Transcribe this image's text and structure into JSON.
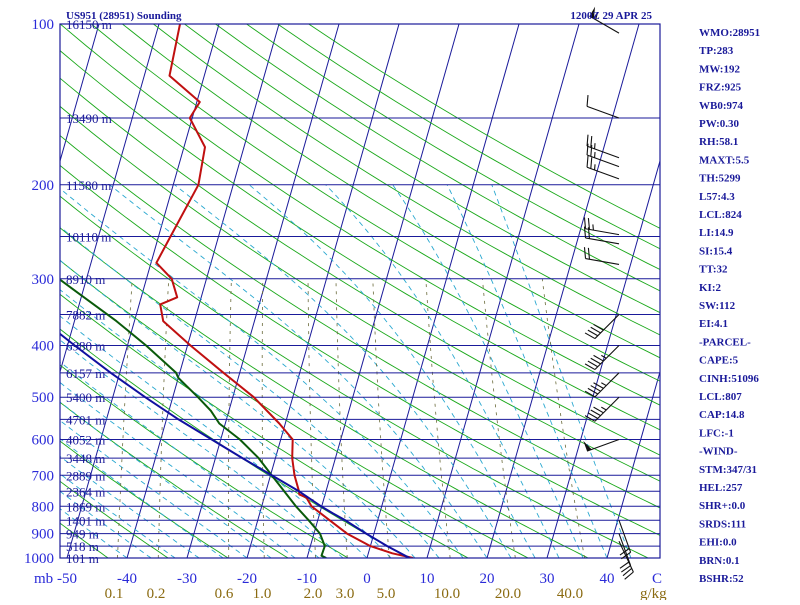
{
  "header": {
    "station": "US951 (28951) Sounding",
    "time": "1200Z 29 APR 25"
  },
  "indices": [
    "WMO:28951",
    "TP:283",
    "MW:192",
    "FRZ:925",
    "WB0:974",
    "PW:0.30",
    "RH:58.1",
    "MAXT:5.5",
    "TH:5299",
    "L57:4.3",
    "LCL:824",
    "LI:14.9",
    "SI:15.4",
    "TT:32",
    "KI:2",
    "SW:112",
    "EI:4.1",
    "-PARCEL-",
    "CAPE:5",
    "CINH:51096",
    "LCL:807",
    "CAP:14.8",
    "LFC:-1",
    "-WIND-",
    "STM:347/31",
    "HEL:257",
    "SHR+:0.0",
    "SRDS:111",
    "EHI:0.0",
    "BRN:0.1",
    "BSHR:52"
  ],
  "axis": {
    "pressure_unit": "mb",
    "temp_unit": "C",
    "mixing_unit": "g/kg"
  },
  "colors": {
    "isobar": "#1a1a9a",
    "isotherm": "#1a1a9a",
    "dry_adiabat": "#1aa81a",
    "moist_adiabat": "#2aa8d0",
    "mixing_ratio": "#6a6a3a",
    "temperature": "#c01010",
    "dewpoint": "#0a5a0a",
    "parcel": "#1010a0"
  },
  "chart_data": {
    "type": "line",
    "diagram": "skew-T log-P",
    "ylim": [
      1000,
      100
    ],
    "xlim": [
      -50,
      50
    ],
    "pressure_ticks": [
      {
        "label": "100",
        "p": 100
      },
      {
        "label": "200",
        "p": 200
      },
      {
        "label": "300",
        "p": 300
      },
      {
        "label": "400",
        "p": 400
      },
      {
        "label": "500",
        "p": 500
      },
      {
        "label": "600",
        "p": 600
      },
      {
        "label": "700",
        "p": 700
      },
      {
        "label": "800",
        "p": 800
      },
      {
        "label": "900",
        "p": 900
      },
      {
        "label": "1000",
        "p": 1000
      }
    ],
    "height_levels": [
      {
        "p": 100,
        "label": "16150 m"
      },
      {
        "p": 150,
        "label": "13490 m"
      },
      {
        "p": 200,
        "label": "11580 m"
      },
      {
        "p": 250,
        "label": "10110 m"
      },
      {
        "p": 300,
        "label": "8910 m"
      },
      {
        "p": 350,
        "label": "7882 m"
      },
      {
        "p": 400,
        "label": "6980 m"
      },
      {
        "p": 450,
        "label": "6157 m"
      },
      {
        "p": 500,
        "label": "5400 m"
      },
      {
        "p": 550,
        "label": "4701 m"
      },
      {
        "p": 600,
        "label": "4052 m"
      },
      {
        "p": 650,
        "label": "3448 m"
      },
      {
        "p": 700,
        "label": "2889 m"
      },
      {
        "p": 750,
        "label": "2364 m"
      },
      {
        "p": 800,
        "label": "1869 m"
      },
      {
        "p": 850,
        "label": "1401 m"
      },
      {
        "p": 900,
        "label": "949 m"
      },
      {
        "p": 950,
        "label": "518 m"
      },
      {
        "p": 1000,
        "label": "101 m"
      }
    ],
    "temp_ticks": [
      {
        "label": "-50",
        "value": -50
      },
      {
        "label": "-40",
        "value": -40
      },
      {
        "label": "-30",
        "value": -30
      },
      {
        "label": "-20",
        "value": -20
      },
      {
        "label": "-10",
        "value": -10
      },
      {
        "label": "0",
        "value": 0
      },
      {
        "label": "10",
        "value": 10
      },
      {
        "label": "20",
        "value": 20
      },
      {
        "label": "30",
        "value": 30
      },
      {
        "label": "40",
        "value": 40
      }
    ],
    "mixing_ratio_ticks": [
      {
        "label": "0.1",
        "value": 0.1
      },
      {
        "label": "0.2",
        "value": 0.2
      },
      {
        "label": "0.6",
        "value": 0.6
      },
      {
        "label": "1.0",
        "value": 1.0
      },
      {
        "label": "2.0",
        "value": 2.0
      },
      {
        "label": "3.0",
        "value": 3.0
      },
      {
        "label": "5.0",
        "value": 5.0
      },
      {
        "label": "10.0",
        "value": 10.0
      },
      {
        "label": "20.0",
        "value": 20.0
      },
      {
        "label": "40.0",
        "value": 40.0
      }
    ],
    "series": [
      {
        "key": "temperature",
        "points": [
          {
            "p": 1000,
            "t": 7.7
          },
          {
            "p": 980,
            "t": 4
          },
          {
            "p": 950,
            "t": 0
          },
          {
            "p": 900,
            "t": -4.5
          },
          {
            "p": 850,
            "t": -8
          },
          {
            "p": 800,
            "t": -11.7
          },
          {
            "p": 770,
            "t": -13
          },
          {
            "p": 760,
            "t": -14.3
          },
          {
            "p": 750,
            "t": -14.5
          },
          {
            "p": 700,
            "t": -16
          },
          {
            "p": 650,
            "t": -17.2
          },
          {
            "p": 600,
            "t": -18
          },
          {
            "p": 560,
            "t": -21
          },
          {
            "p": 500,
            "t": -26.5
          },
          {
            "p": 450,
            "t": -32.7
          },
          {
            "p": 400,
            "t": -39.5
          },
          {
            "p": 360,
            "t": -45.2
          },
          {
            "p": 335,
            "t": -46.5
          },
          {
            "p": 325,
            "t": -44
          },
          {
            "p": 300,
            "t": -45.8
          },
          {
            "p": 280,
            "t": -49.1
          },
          {
            "p": 250,
            "t": -48
          },
          {
            "p": 200,
            "t": -45.8
          },
          {
            "p": 170,
            "t": -46.5
          },
          {
            "p": 150,
            "t": -50.4
          },
          {
            "p": 140,
            "t": -49.5
          },
          {
            "p": 125,
            "t": -55.8
          },
          {
            "p": 100,
            "t": -56.5
          }
        ]
      },
      {
        "key": "dewpoint",
        "points": [
          {
            "p": 1000,
            "t": -6.8
          },
          {
            "p": 990,
            "t": -7.7
          },
          {
            "p": 950,
            "t": -7.6
          },
          {
            "p": 900,
            "t": -9
          },
          {
            "p": 850,
            "t": -11.5
          },
          {
            "p": 800,
            "t": -14.3
          },
          {
            "p": 700,
            "t": -19.8
          },
          {
            "p": 650,
            "t": -22.8
          },
          {
            "p": 600,
            "t": -26.8
          },
          {
            "p": 560,
            "t": -31
          },
          {
            "p": 530,
            "t": -33
          },
          {
            "p": 500,
            "t": -35.8
          },
          {
            "p": 460,
            "t": -40
          },
          {
            "p": 450,
            "t": -40.6
          },
          {
            "p": 400,
            "t": -46.9
          },
          {
            "p": 360,
            "t": -53
          },
          {
            "p": 320,
            "t": -60.5
          },
          {
            "p": 300,
            "t": -64.6
          },
          {
            "p": 280,
            "t": -66.5
          },
          {
            "p": 260,
            "t": -69.6
          },
          {
            "p": 250,
            "t": -73.6
          },
          {
            "p": 230,
            "t": -76
          },
          {
            "p": 200,
            "t": -80.5
          },
          {
            "p": 170,
            "t": -85
          },
          {
            "p": 150,
            "t": -87.5
          },
          {
            "p": 145,
            "t": -88.5
          },
          {
            "p": 130,
            "t": -88.3
          },
          {
            "p": 110,
            "t": -90
          },
          {
            "p": 100,
            "t": -90.8
          }
        ]
      },
      {
        "key": "parcel",
        "points": [
          {
            "p": 1000,
            "t": 7.1
          },
          {
            "p": 950,
            "t": 2.8
          },
          {
            "p": 900,
            "t": -1.3
          },
          {
            "p": 850,
            "t": -5.4
          },
          {
            "p": 825,
            "t": -7.8
          },
          {
            "p": 800,
            "t": -10.1
          },
          {
            "p": 750,
            "t": -14.5
          },
          {
            "p": 700,
            "t": -19.8
          },
          {
            "p": 650,
            "t": -25.5
          },
          {
            "p": 600,
            "t": -31.5
          },
          {
            "p": 550,
            "t": -38
          },
          {
            "p": 500,
            "t": -44.6
          },
          {
            "p": 450,
            "t": -51.5
          },
          {
            "p": 400,
            "t": -58.8
          },
          {
            "p": 350,
            "t": -66.8
          },
          {
            "p": 300,
            "t": -75.3
          },
          {
            "p": 250,
            "t": -84.5
          },
          {
            "p": 200,
            "t": -95.3
          },
          {
            "p": 150,
            "t": -108
          },
          {
            "p": 120,
            "t": -117
          }
        ]
      }
    ],
    "wind_barbs": [
      {
        "p": 104,
        "dir": 300,
        "kt": 55
      },
      {
        "p": 150,
        "dir": 290,
        "kt": 10
      },
      {
        "p": 178,
        "dir": 290,
        "kt": 25
      },
      {
        "p": 185,
        "dir": 290,
        "kt": 25
      },
      {
        "p": 195,
        "dir": 290,
        "kt": 25
      },
      {
        "p": 248,
        "dir": 280,
        "kt": 25
      },
      {
        "p": 258,
        "dir": 280,
        "kt": 20
      },
      {
        "p": 282,
        "dir": 280,
        "kt": 20
      },
      {
        "p": 350,
        "dir": 225,
        "kt": 40
      },
      {
        "p": 400,
        "dir": 225,
        "kt": 45
      },
      {
        "p": 450,
        "dir": 225,
        "kt": 45
      },
      {
        "p": 500,
        "dir": 225,
        "kt": 45
      },
      {
        "p": 600,
        "dir": 250,
        "kt": 50
      },
      {
        "p": 850,
        "dir": 160,
        "kt": 20
      },
      {
        "p": 900,
        "dir": 160,
        "kt": 20
      },
      {
        "p": 930,
        "dir": 155,
        "kt": 20
      }
    ]
  }
}
